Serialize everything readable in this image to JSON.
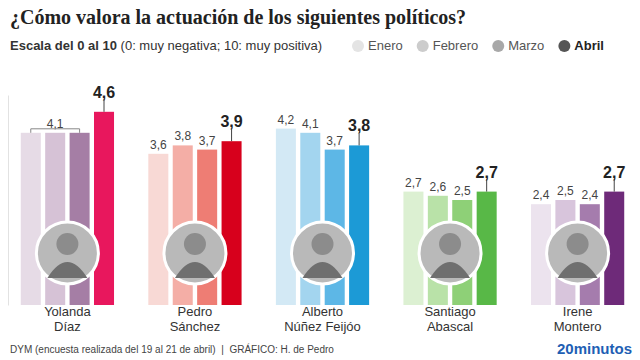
{
  "chart_data": {
    "type": "bar",
    "title": "¿Cómo valora la actuación de los siguientes políticos?",
    "subtitle": "Escala del 0 al 10 (0: muy negativa; 10: muy positiva)",
    "source": "DYM (encuesta realizada del 19 al 21 de abril)  |  GRÁFICO: H. de Pedro",
    "logo_text": "20minutos",
    "categories": [
      "Yolanda Díaz",
      "Pedro Sánchez",
      "Alberto Núñez Feijóo",
      "Santiago Abascal",
      "Irene Montero"
    ],
    "series": [
      {
        "name": "Enero",
        "color": "#e4e4e4",
        "colors": [
          "#e6dbe6",
          "#f8d9d5",
          "#d3e9f5",
          "#dcf0d2",
          "#ece3ee"
        ],
        "values": [
          4.1,
          3.6,
          4.2,
          2.7,
          2.4
        ],
        "value_labels": [
          null,
          "3,6",
          "4,2",
          "2,7",
          "2,4"
        ]
      },
      {
        "name": "Febrero",
        "color": "#cccccc",
        "colors": [
          "#d6c2d6",
          "#f4aea6",
          "#a3d5ef",
          "#b9e2a8",
          "#d8c5dc"
        ],
        "values": [
          4.1,
          3.8,
          4.1,
          2.6,
          2.5
        ],
        "value_labels": [
          "4,1",
          "3,8",
          "4,1",
          "2,6",
          "2,5"
        ]
      },
      {
        "name": "Marzo",
        "color": "#a8a8a8",
        "colors": [
          "#a57ea5",
          "#ee7d74",
          "#5db7e6",
          "#8ed077",
          "#a57cad"
        ],
        "values": [
          4.1,
          3.7,
          3.7,
          2.5,
          2.4
        ],
        "value_labels": [
          null,
          "3,7",
          "3,7",
          "2,5",
          "2,4"
        ]
      },
      {
        "name": "Abril",
        "color": "#555555",
        "colors": [
          "#e8175d",
          "#d7001c",
          "#1c9ad6",
          "#58b847",
          "#6e2a79"
        ],
        "values": [
          4.6,
          3.9,
          3.8,
          2.7,
          2.7
        ],
        "value_labels": [
          "4,6",
          "3,9",
          "3,8",
          "2,7",
          "2,7"
        ]
      }
    ],
    "ylim": [
      0,
      5
    ],
    "yticks": [
      0,
      5
    ],
    "tick_labels": false,
    "grid": false,
    "legend": "top",
    "data_labels": true
  }
}
